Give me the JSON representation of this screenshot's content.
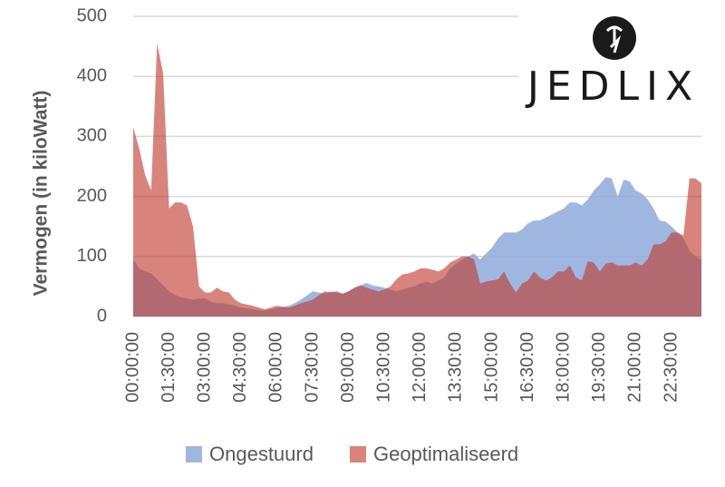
{
  "chart_data": {
    "type": "area",
    "y_label": "Vermogen (in kiloWatt)",
    "logo_text": "JEDLIX",
    "categories": [
      "00:00:00",
      null,
      null,
      null,
      null,
      null,
      "01:30:00",
      null,
      null,
      null,
      null,
      null,
      "03:00:00",
      null,
      null,
      null,
      null,
      null,
      "04:30:00",
      null,
      null,
      null,
      null,
      null,
      "06:00:00",
      null,
      null,
      null,
      null,
      null,
      "07:30:00",
      null,
      null,
      null,
      null,
      null,
      "09:00:00",
      null,
      null,
      null,
      null,
      null,
      "10:30:00",
      null,
      null,
      null,
      null,
      null,
      "12:00:00",
      null,
      null,
      null,
      null,
      null,
      "13:30:00",
      null,
      null,
      null,
      null,
      null,
      "15:00:00",
      null,
      null,
      null,
      null,
      null,
      "16:30:00",
      null,
      null,
      null,
      null,
      null,
      "18:00:00",
      null,
      null,
      null,
      null,
      null,
      "19:30:00",
      null,
      null,
      null,
      null,
      null,
      "21:00:00",
      null,
      null,
      null,
      null,
      null,
      "22:30:00",
      null,
      null,
      null,
      null,
      null
    ],
    "series": [
      {
        "name": "Ongestuurd",
        "color": "#8eaadb",
        "opacity": 0.85,
        "values": [
          95,
          80,
          75,
          72,
          62,
          52,
          42,
          36,
          32,
          30,
          28,
          30,
          30,
          25,
          22,
          22,
          20,
          18,
          15,
          14,
          12,
          10,
          10,
          12,
          14,
          16,
          18,
          22,
          28,
          35,
          42,
          40,
          38,
          42,
          40,
          38,
          42,
          48,
          52,
          56,
          52,
          50,
          48,
          45,
          42,
          45,
          48,
          50,
          55,
          58,
          55,
          60,
          65,
          80,
          88,
          95,
          100,
          105,
          95,
          105,
          115,
          130,
          140,
          140,
          140,
          145,
          155,
          160,
          160,
          165,
          170,
          175,
          180,
          190,
          190,
          185,
          195,
          210,
          220,
          232,
          230,
          200,
          228,
          225,
          210,
          205,
          195,
          180,
          160,
          158,
          150,
          140,
          130,
          110,
          100,
          95
        ]
      },
      {
        "name": "Geoptimaliseerd",
        "color": "#c0392b",
        "opacity": 0.62,
        "values": [
          315,
          280,
          235,
          210,
          455,
          405,
          180,
          190,
          190,
          185,
          150,
          50,
          40,
          40,
          48,
          42,
          40,
          28,
          22,
          20,
          18,
          15,
          12,
          15,
          18,
          16,
          15,
          18,
          22,
          25,
          28,
          35,
          42,
          40,
          42,
          38,
          42,
          48,
          52,
          48,
          45,
          42,
          45,
          50,
          62,
          70,
          72,
          75,
          80,
          80,
          78,
          75,
          80,
          90,
          95,
          100,
          100,
          95,
          55,
          58,
          60,
          62,
          75,
          55,
          40,
          55,
          60,
          75,
          65,
          60,
          65,
          75,
          75,
          85,
          65,
          60,
          92,
          90,
          75,
          88,
          90,
          85,
          85,
          85,
          90,
          85,
          95,
          120,
          120,
          125,
          140,
          140,
          135,
          230,
          230,
          222
        ]
      }
    ],
    "ylim": [
      0,
      500
    ],
    "yticks": [
      0,
      100,
      200,
      300,
      400,
      500
    ],
    "grid": true,
    "legend": "bottom"
  }
}
